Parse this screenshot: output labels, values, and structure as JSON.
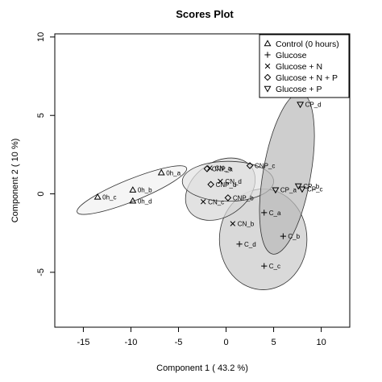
{
  "chart_data": {
    "type": "scatter",
    "title": "Scores Plot",
    "xlabel": "Component 1 ( 43.2 %)",
    "ylabel": "Component 2 ( 10 %)",
    "xlim": [
      -18,
      13
    ],
    "ylim": [
      -8.5,
      10.2
    ],
    "xticks": [
      -15,
      -10,
      -5,
      0,
      5,
      10
    ],
    "yticks": [
      -5,
      0,
      5,
      10
    ],
    "grid": false,
    "legend_position": "top-right",
    "series": [
      {
        "name": "Control (0 hours)",
        "marker": "triangle-up",
        "ellipse_fill": "#f1f1f1",
        "points": [
          {
            "label": "0h_a",
            "x": -6.8,
            "y": 1.35
          },
          {
            "label": "0h_b",
            "x": -9.8,
            "y": 0.25
          },
          {
            "label": "0h_c",
            "x": -13.5,
            "y": -0.2
          },
          {
            "label": "0h_d",
            "x": -9.8,
            "y": -0.45
          }
        ],
        "ellipse": {
          "cx": -9.9,
          "cy": 0.24,
          "rx": 6.2,
          "ry": 1.15,
          "angle": 22
        }
      },
      {
        "name": "Glucose",
        "marker": "plus",
        "ellipse_fill": "#c9c9c9",
        "points": [
          {
            "label": "C_a",
            "x": 4.0,
            "y": -1.2
          },
          {
            "label": "C_b",
            "x": 6.0,
            "y": -2.7
          },
          {
            "label": "C_c",
            "x": 4.0,
            "y": -4.6
          },
          {
            "label": "C_d",
            "x": 1.4,
            "y": -3.2
          }
        ],
        "ellipse": {
          "cx": 3.9,
          "cy": -2.9,
          "rx": 5.3,
          "ry": 4.6,
          "angle": 90
        }
      },
      {
        "name": "Glucose + N",
        "marker": "x",
        "ellipse_fill": "#d6d6d6",
        "points": [
          {
            "label": "CN_a",
            "x": -1.7,
            "y": 1.65
          },
          {
            "label": "CN_b",
            "x": 0.7,
            "y": -1.9
          },
          {
            "label": "CN_c",
            "x": -2.4,
            "y": -0.5
          },
          {
            "label": "CN_d",
            "x": -0.6,
            "y": 0.8
          }
        ],
        "ellipse": {
          "cx": -0.6,
          "cy": 0.3,
          "rx": 4.0,
          "ry": 2.85,
          "angle": 35
        }
      },
      {
        "name": "Glucose + N + P",
        "marker": "diamond",
        "ellipse_fill": "#e3e3e3",
        "points": [
          {
            "label": "CNP_a",
            "x": -2.0,
            "y": 1.6
          },
          {
            "label": "CNP_b",
            "x": 0.2,
            "y": -0.25
          },
          {
            "label": "CNP_c",
            "x": 2.5,
            "y": 1.8
          },
          {
            "label": "CNP_d",
            "x": -1.6,
            "y": 0.6
          }
        ],
        "ellipse": {
          "cx": 0.2,
          "cy": 0.8,
          "rx": 4.8,
          "ry": 2.1,
          "angle": 0
        }
      },
      {
        "name": "Glucose + P",
        "marker": "triangle-down",
        "ellipse_fill": "#b9b9b9",
        "points": [
          {
            "label": "CP_a",
            "x": 5.2,
            "y": 0.25
          },
          {
            "label": "CP_b",
            "x": 7.6,
            "y": 0.5
          },
          {
            "label": "CP_c",
            "x": 8.0,
            "y": 0.3
          },
          {
            "label": "CP_d",
            "x": 7.8,
            "y": 5.7
          }
        ],
        "ellipse": {
          "cx": 6.4,
          "cy": 1.3,
          "rx": 8.6,
          "ry": 2.5,
          "angle": 80
        }
      }
    ]
  }
}
